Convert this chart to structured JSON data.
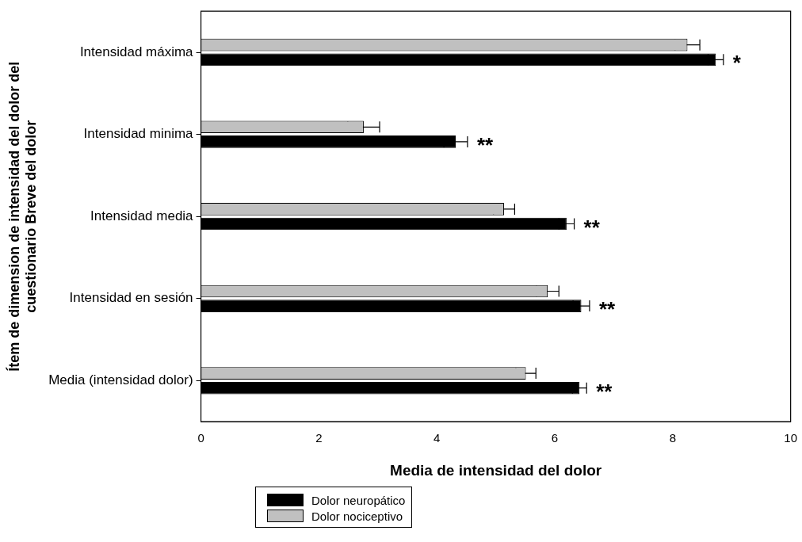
{
  "chart_data": {
    "type": "bar",
    "orientation": "horizontal",
    "xlabel": "Media de intensidad del dolor",
    "ylabel": "Ítem de dimension de intensidad del dolor del\ncuestionario Breve del dolor",
    "categories": [
      "Intensidad máxima",
      "Intensidad minima",
      "Intensidad media",
      "Intensidad en sesión",
      "Media (intensidad dolor)"
    ],
    "series": [
      {
        "name": "Dolor neuropático",
        "color": "#000000",
        "values": [
          8.73,
          4.32,
          6.2,
          6.45,
          6.42
        ],
        "errors": [
          0.13,
          0.2,
          0.13,
          0.14,
          0.12
        ]
      },
      {
        "name": "Dolor nociceptivo",
        "color": "#c0c0c0",
        "values": [
          8.25,
          2.76,
          5.14,
          5.88,
          5.51
        ],
        "errors": [
          0.21,
          0.27,
          0.18,
          0.19,
          0.17
        ]
      }
    ],
    "xlim": [
      0,
      10
    ],
    "xticks": [
      0,
      2,
      4,
      6,
      8,
      10
    ],
    "grid": false,
    "legend": "bottom left",
    "annotations": [
      "*",
      "**",
      "**",
      "**",
      "**"
    ]
  }
}
